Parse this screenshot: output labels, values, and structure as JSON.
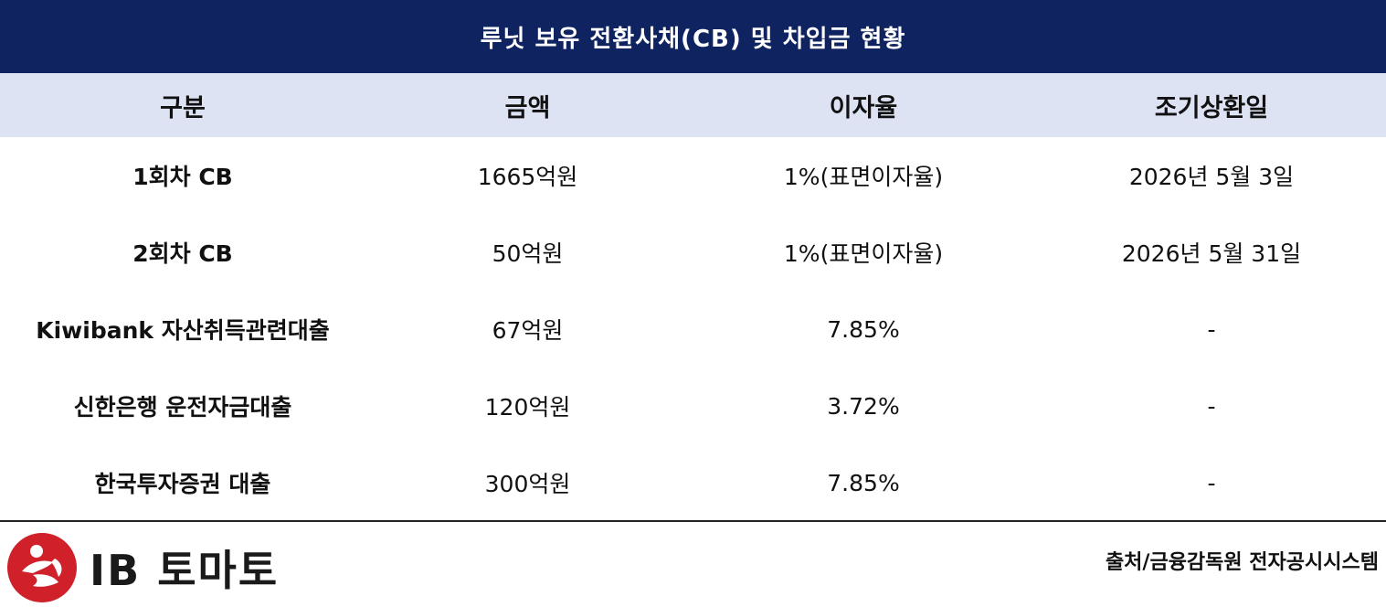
{
  "title": "루닛 보유 전환사채(CB) 및 차입금 현황",
  "columns": [
    "구분",
    "금액",
    "이자율",
    "조기상환일"
  ],
  "rows": [
    {
      "name": "1회차 CB",
      "amount": "1665억원",
      "rate": "1%(표면이자율)",
      "date": "2026년 5월 3일"
    },
    {
      "name": "2회차 CB",
      "amount": "50억원",
      "rate": "1%(표면이자율)",
      "date": "2026년 5월 31일"
    },
    {
      "name": "Kiwibank 자산취득관련대출",
      "amount": "67억원",
      "rate": "7.85%",
      "date": "-"
    },
    {
      "name": "신한은행 운전자금대출",
      "amount": "120억원",
      "rate": "3.72%",
      "date": "-"
    },
    {
      "name": "한국투자증권 대출",
      "amount": "300억원",
      "rate": "7.85%",
      "date": "-"
    }
  ],
  "footer": {
    "logo_text": "IB 토마토",
    "logo_icon": "ib-tomato-logo-icon",
    "source": "출처/금융감독원 전자공시시스템"
  },
  "colors": {
    "title_bg": "#0f2360",
    "header_bg": "#dde3f3",
    "logo_red": "#d0202a"
  }
}
